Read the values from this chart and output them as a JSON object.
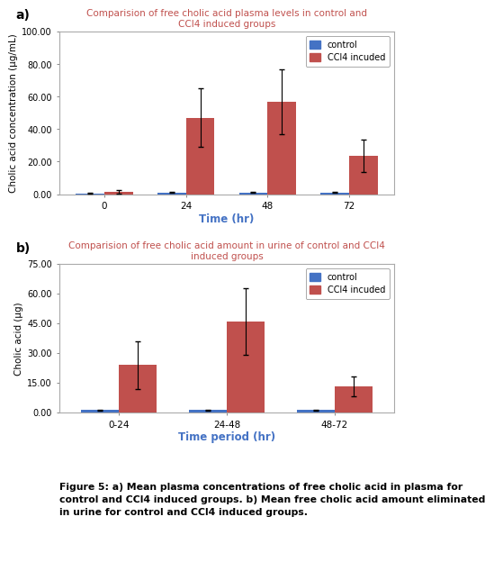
{
  "chart_a": {
    "title": "Comparision of free cholic acid plasma levels in control and\nCCl4 induced groups",
    "xlabel": "Time (hr)",
    "ylabel": "Cholic acid concentration (µg/mL)",
    "categories": [
      "0",
      "24",
      "48",
      "72"
    ],
    "control_values": [
      0.5,
      1.0,
      1.0,
      1.0
    ],
    "ccl4_values": [
      1.5,
      47.0,
      57.0,
      23.5
    ],
    "control_errors": [
      0.3,
      0.3,
      0.3,
      0.3
    ],
    "ccl4_errors": [
      1.0,
      18.0,
      20.0,
      10.0
    ],
    "ylim": [
      0,
      100
    ],
    "yticks": [
      0.0,
      20.0,
      40.0,
      60.0,
      80.0,
      100.0
    ],
    "ytick_labels": [
      "0.00",
      "20.00",
      "40.00",
      "60.00",
      "80.00",
      "100.00"
    ]
  },
  "chart_b": {
    "title": "Comparision of free cholic acid amount in urine of control and CCl4\ninduced groups",
    "xlabel": "Time period (hr)",
    "ylabel": "Cholic acid (µg)",
    "categories": [
      "0-24",
      "24-48",
      "48-72"
    ],
    "control_values": [
      1.2,
      1.2,
      1.2
    ],
    "ccl4_values": [
      24.0,
      46.0,
      13.0
    ],
    "control_errors": [
      0.3,
      0.3,
      0.3
    ],
    "ccl4_errors": [
      12.0,
      17.0,
      5.0
    ],
    "ylim": [
      0,
      75
    ],
    "yticks": [
      0.0,
      15.0,
      30.0,
      45.0,
      60.0,
      75.0
    ],
    "ytick_labels": [
      "0.00",
      "15.00",
      "30.00",
      "45.00",
      "60.00",
      "75.00"
    ]
  },
  "control_color": "#4472C4",
  "ccl4_color": "#C0504D",
  "bar_width": 0.35,
  "title_color": "#C0504D",
  "xlabel_color": "#4472C4",
  "legend_label_control": "control",
  "legend_label_ccl4": "CCl4 incuded",
  "caption_line1": "Figure 5: a) Mean plasma concentrations of free cholic acid in plasma for",
  "caption_line2": "control and CCl4 induced groups. b) Mean free cholic acid amount eliminated",
  "caption_line3": "in urine for control and CCl4 induced groups.",
  "figure_bg": "#ffffff",
  "plot_bg": "#ffffff",
  "border_color": "#aaaaaa",
  "label_a": "a)",
  "label_b": "b)"
}
